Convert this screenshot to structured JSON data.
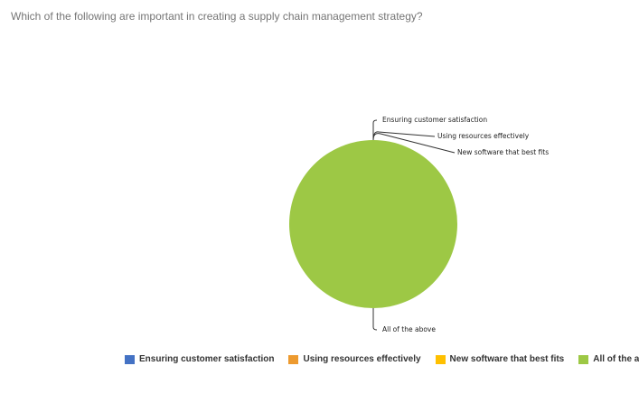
{
  "question": "Which of the following are important in creating a supply chain management strategy?",
  "chart_data": {
    "type": "pie",
    "title": "Which of the following are important in creating a supply chain management strategy?",
    "categories": [
      "Ensuring customer satisfaction",
      "Using resources effectively",
      "New software that best fits",
      "All of the above"
    ],
    "values": [
      0,
      0,
      0,
      100
    ],
    "colors": [
      "#4472C4",
      "#ED9A2F",
      "#FFC000",
      "#9DC845"
    ],
    "legend_position": "bottom",
    "data_labels": [
      "Ensuring customer satisfaction",
      "Using resources effectively",
      "New software that best fits",
      "All of the above"
    ]
  }
}
